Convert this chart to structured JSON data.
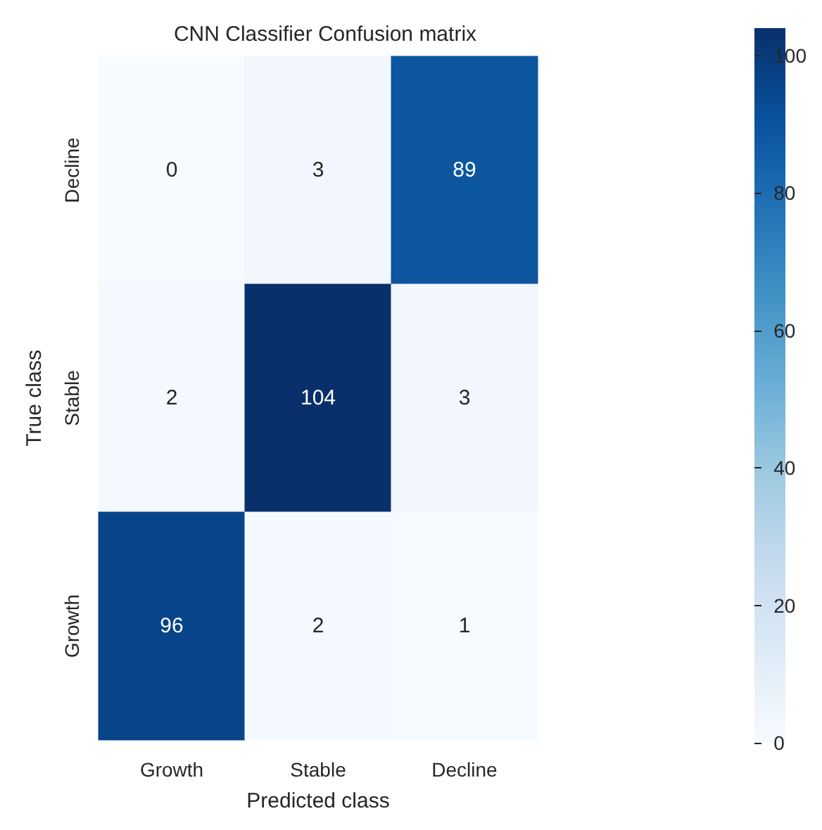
{
  "chart_data": {
    "type": "heatmap",
    "title": "CNN Classifier Confusion matrix",
    "xlabel": "Predicted class",
    "ylabel": "True class",
    "categories": [
      "Growth",
      "Stable",
      "Decline"
    ],
    "y_categories": [
      "Decline",
      "Stable",
      "Growth"
    ],
    "cells": [
      [
        0,
        3,
        89
      ],
      [
        2,
        104,
        3
      ],
      [
        96,
        2,
        1
      ]
    ],
    "clim": [
      0,
      104
    ],
    "cticks": [
      0,
      20,
      40,
      60,
      80,
      100
    ],
    "data_labels": true
  }
}
